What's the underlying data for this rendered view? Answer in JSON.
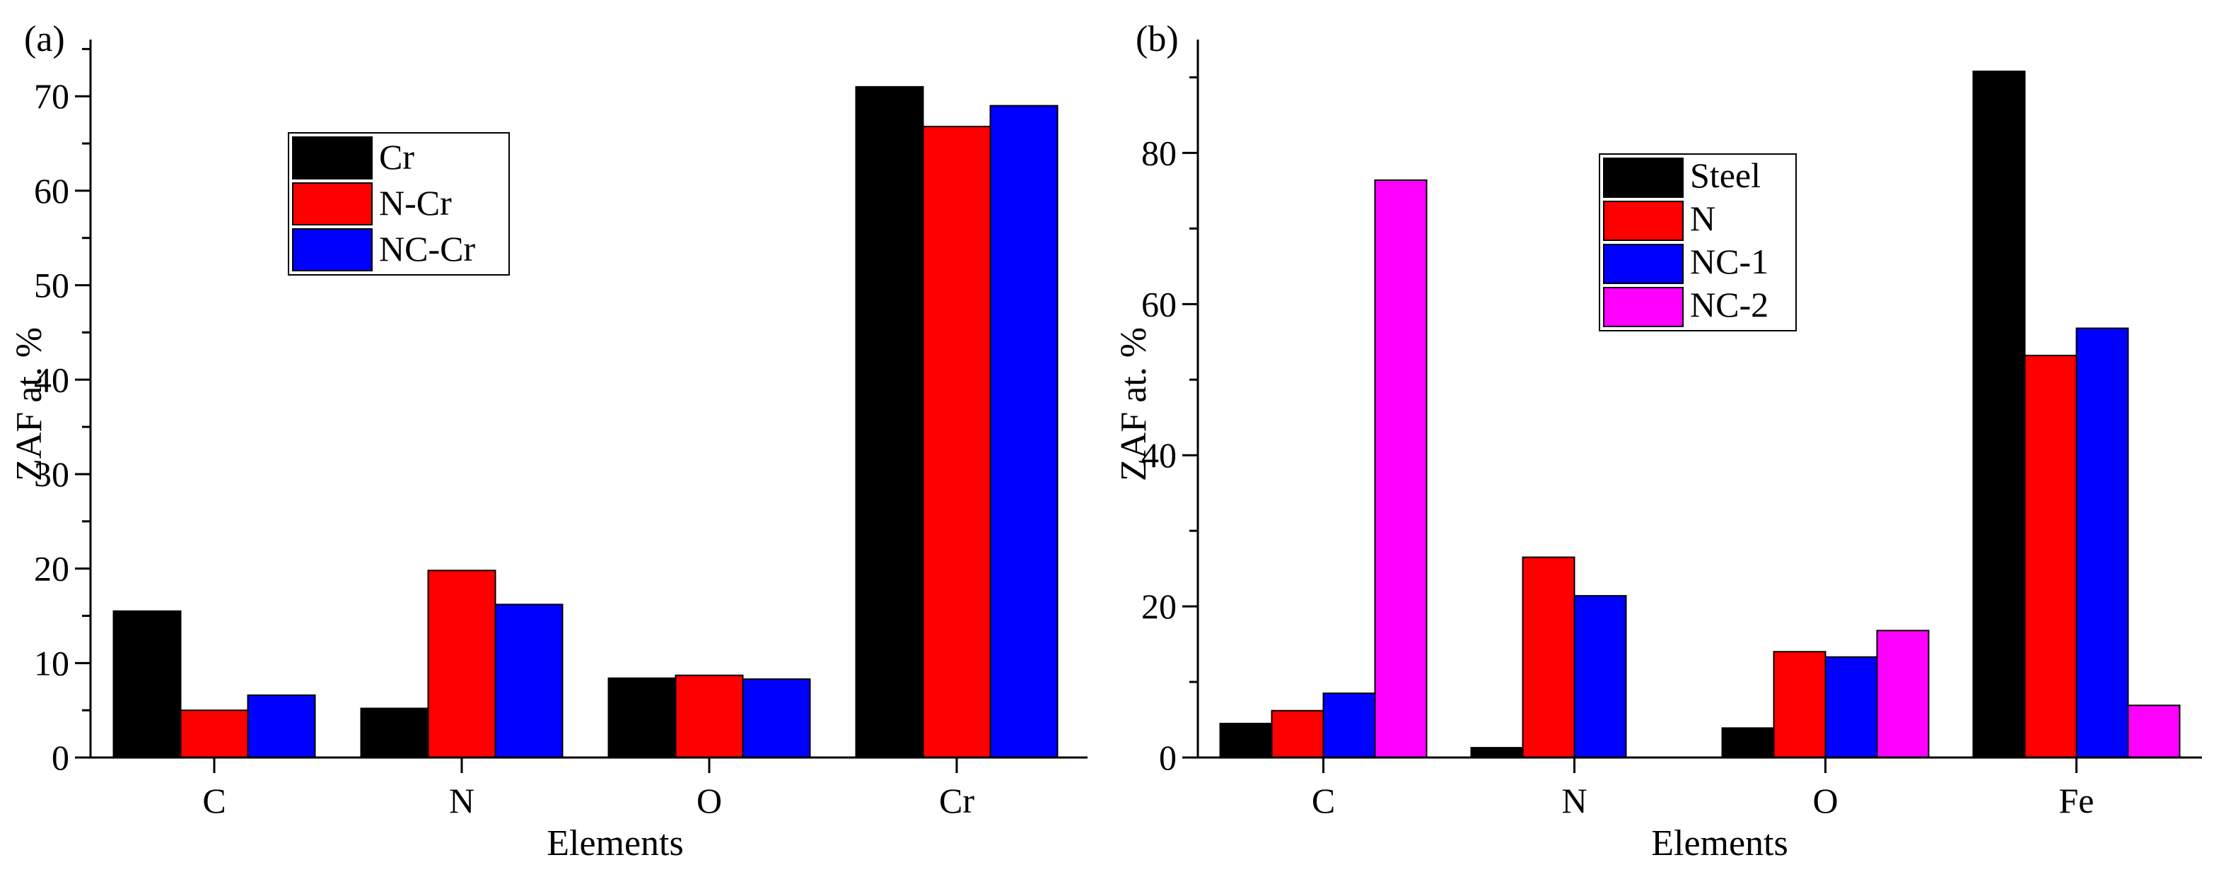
{
  "chart_data": [
    {
      "type": "bar",
      "panel_label": "(a)",
      "categories": [
        "C",
        "N",
        "O",
        "Cr"
      ],
      "series": [
        {
          "name": "Cr",
          "color": "#000000",
          "values": [
            15.5,
            5.2,
            8.4,
            71.0
          ]
        },
        {
          "name": "N-Cr",
          "color": "#ff0000",
          "values": [
            5.0,
            19.8,
            8.7,
            66.8
          ]
        },
        {
          "name": "NC-Cr",
          "color": "#0000ff",
          "values": [
            6.6,
            16.2,
            8.3,
            69.0
          ]
        }
      ],
      "xlabel": "Elements",
      "ylabel": "ZAF at. %",
      "ylim": [
        0,
        76
      ],
      "yticks": [
        "0",
        "10",
        "20",
        "30",
        "40",
        "50",
        "60",
        "70"
      ],
      "legend_position": "upper-left"
    },
    {
      "type": "bar",
      "panel_label": "(b)",
      "categories": [
        "C",
        "N",
        "O",
        "Fe"
      ],
      "series": [
        {
          "name": "Steel",
          "color": "#000000",
          "values": [
            4.5,
            1.3,
            3.9,
            90.8
          ]
        },
        {
          "name": "N",
          "color": "#ff0000",
          "values": [
            6.2,
            26.5,
            14.0,
            53.2
          ]
        },
        {
          "name": "NC-1",
          "color": "#0000ff",
          "values": [
            8.5,
            21.4,
            13.3,
            56.8
          ]
        },
        {
          "name": "NC-2",
          "color": "#ff00ff",
          "values": [
            76.4,
            0,
            16.8,
            6.9
          ]
        }
      ],
      "xlabel": "Elements",
      "ylabel": "ZAF at. %",
      "ylim": [
        0,
        95
      ],
      "yticks": [
        "0",
        "20",
        "40",
        "60",
        "80"
      ],
      "legend_position": "upper-center"
    }
  ]
}
